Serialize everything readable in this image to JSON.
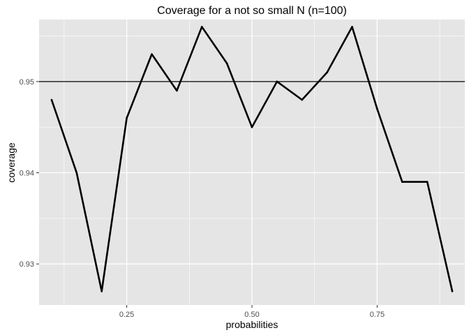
{
  "chart_data": {
    "type": "line",
    "title": "Coverage for a not so small N (n=100)",
    "xlabel": "probabilities",
    "ylabel": "coverage",
    "xlim": [
      0.075,
      0.925
    ],
    "ylim": [
      0.9255,
      0.9568
    ],
    "xticks": [
      0.25,
      0.5,
      0.75
    ],
    "xtick_labels": [
      "0.25",
      "0.50",
      "0.75"
    ],
    "xminor": [
      0.125,
      0.375,
      0.625,
      0.875
    ],
    "yticks": [
      0.93,
      0.94,
      0.95
    ],
    "ytick_labels": [
      "0.93",
      "0.94",
      "0.95"
    ],
    "yminor": [
      0.935,
      0.945,
      0.955
    ],
    "grid": true,
    "reference_line": {
      "y": 0.95,
      "color": "#000000"
    },
    "series": [
      {
        "color": "#000000",
        "x": [
          0.1,
          0.15,
          0.2,
          0.25,
          0.3,
          0.35,
          0.4,
          0.45,
          0.5,
          0.55,
          0.6,
          0.65,
          0.7,
          0.75,
          0.8,
          0.85,
          0.9
        ],
        "y": [
          0.948,
          0.94,
          0.927,
          0.946,
          0.953,
          0.949,
          0.956,
          0.952,
          0.945,
          0.95,
          0.948,
          0.951,
          0.956,
          0.947,
          0.939,
          0.939,
          0.927
        ]
      }
    ],
    "colors": {
      "panel": "#e5e5e5",
      "grid": "#ffffff",
      "text": "#4d4d4d"
    }
  }
}
